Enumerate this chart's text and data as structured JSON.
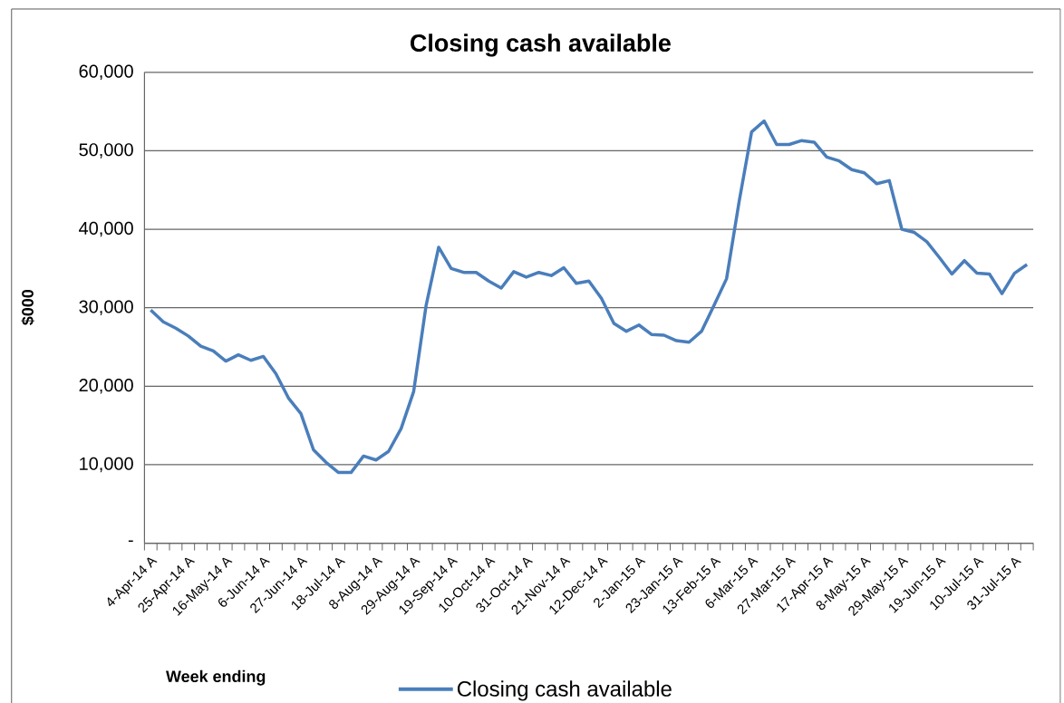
{
  "chart_data": {
    "type": "line",
    "title": "Closing cash available",
    "xlabel": "Week ending",
    "ylabel": "$000",
    "categories": [
      "4-Apr-14 A",
      null,
      null,
      "25-Apr-14 A",
      null,
      null,
      "16-May-14 A",
      null,
      null,
      "6-Jun-14 A",
      null,
      null,
      "27-Jun-14 A",
      null,
      null,
      "18-Jul-14 A",
      null,
      null,
      "8-Aug-14 A",
      null,
      null,
      "29-Aug-14 A",
      null,
      null,
      "19-Sep-14 A",
      null,
      null,
      "10-Oct-14 A",
      null,
      null,
      "31-Oct-14 A",
      null,
      null,
      "21-Nov-14 A",
      null,
      null,
      "12-Dec-14 A",
      null,
      null,
      "2-Jan-15 A",
      null,
      null,
      "23-Jan-15 A",
      null,
      null,
      "13-Feb-15 A",
      null,
      null,
      "6-Mar-15 A",
      null,
      null,
      "27-Mar-15 A",
      null,
      null,
      "17-Apr-15 A",
      null,
      null,
      "8-May-15 A",
      null,
      null,
      "29-May-15 A",
      null,
      null,
      "19-Jun-15 A",
      null,
      null,
      "10-Jul-15 A",
      null,
      null,
      "31-Jul-15 A",
      null
    ],
    "series": [
      {
        "name": "Closing cash available",
        "color": "#4a7ebb",
        "values": [
          29700,
          28200,
          27400,
          26400,
          25100,
          24500,
          23200,
          24000,
          23300,
          23800,
          21600,
          18500,
          16500,
          11900,
          10300,
          9000,
          9000,
          11100,
          10600,
          11700,
          14600,
          19300,
          30300,
          37700,
          35000,
          34500,
          34500,
          33400,
          32500,
          34600,
          33900,
          34500,
          34100,
          35100,
          33100,
          33400,
          31200,
          28000,
          27000,
          27800,
          26600,
          26500,
          25800,
          25600,
          27000,
          30300,
          33700,
          43500,
          52400,
          53800,
          50800,
          50800,
          51300,
          51100,
          49200,
          48700,
          47600,
          47200,
          45800,
          46200,
          40000,
          39600,
          38400,
          36400,
          34300,
          36000,
          34400,
          34300,
          31800,
          34400,
          35500
        ]
      }
    ],
    "ylim": [
      0,
      60000
    ],
    "yticks": [
      {
        "value": 0,
        "label": "-"
      },
      {
        "value": 10000,
        "label": "10,000"
      },
      {
        "value": 20000,
        "label": "20,000"
      },
      {
        "value": 30000,
        "label": "30,000"
      },
      {
        "value": 40000,
        "label": "40,000"
      },
      {
        "value": 50000,
        "label": "50,000"
      },
      {
        "value": 60000,
        "label": "60,000"
      }
    ],
    "grid": "y",
    "legend": "bottom",
    "marker": "none",
    "line_style": "solid"
  }
}
